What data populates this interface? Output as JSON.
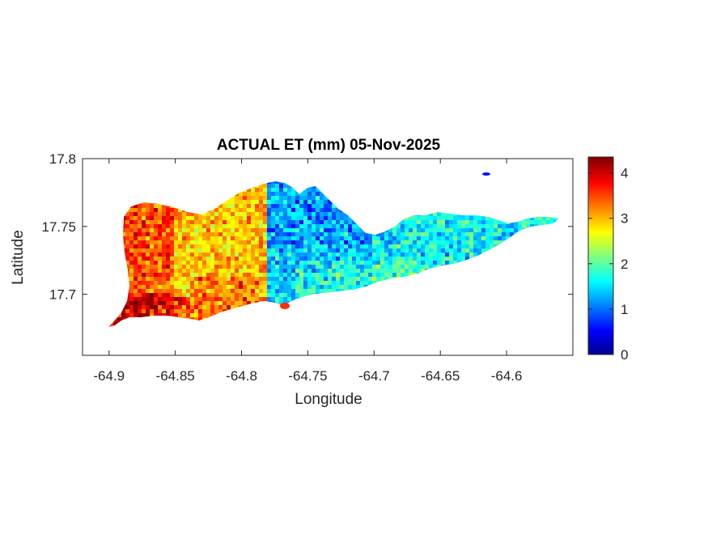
{
  "chart_data": {
    "type": "heatmap",
    "title": "ACTUAL ET (mm) 05-Nov-2025",
    "xlabel": "Longitude",
    "ylabel": "Latitude",
    "xlim": [
      -64.92,
      -64.55
    ],
    "ylim": [
      17.655,
      17.8
    ],
    "xticks": [
      -64.9,
      -64.85,
      -64.8,
      -64.75,
      -64.7,
      -64.65,
      -64.6
    ],
    "xtick_labels": [
      "-64.9",
      "-64.85",
      "-64.8",
      "-64.75",
      "-64.7",
      "-64.65",
      "-64.6"
    ],
    "yticks": [
      17.7,
      17.75,
      17.8
    ],
    "ytick_labels": [
      "17.7",
      "17.75",
      "17.8"
    ],
    "colorbar": {
      "colormap": "jet",
      "range": [
        0,
        4.35
      ],
      "ticks": [
        0,
        1,
        2,
        3,
        4
      ],
      "tick_labels": [
        "0",
        "1",
        "2",
        "3",
        "4"
      ],
      "colors": [
        "#00008f",
        "#0000ff",
        "#00ffff",
        "#ffff00",
        "#ff0000",
        "#800000"
      ]
    },
    "regions": [
      {
        "name": "",
        "lon_range": [
          -64.9,
          -64.85
        ],
        "value_range": [
          2.5,
          4.3
        ]
      },
      {
        "name": "",
        "lon_range": [
          -64.85,
          -64.78
        ],
        "value_range": [
          2.2,
          3.6
        ]
      },
      {
        "name": "",
        "lon_range": [
          -64.78,
          -64.7
        ],
        "value_range": [
          0.5,
          2.2
        ]
      },
      {
        "name": "",
        "lon_range": [
          -64.7,
          -64.56
        ],
        "value_range": [
          0.6,
          2.4
        ]
      }
    ]
  }
}
